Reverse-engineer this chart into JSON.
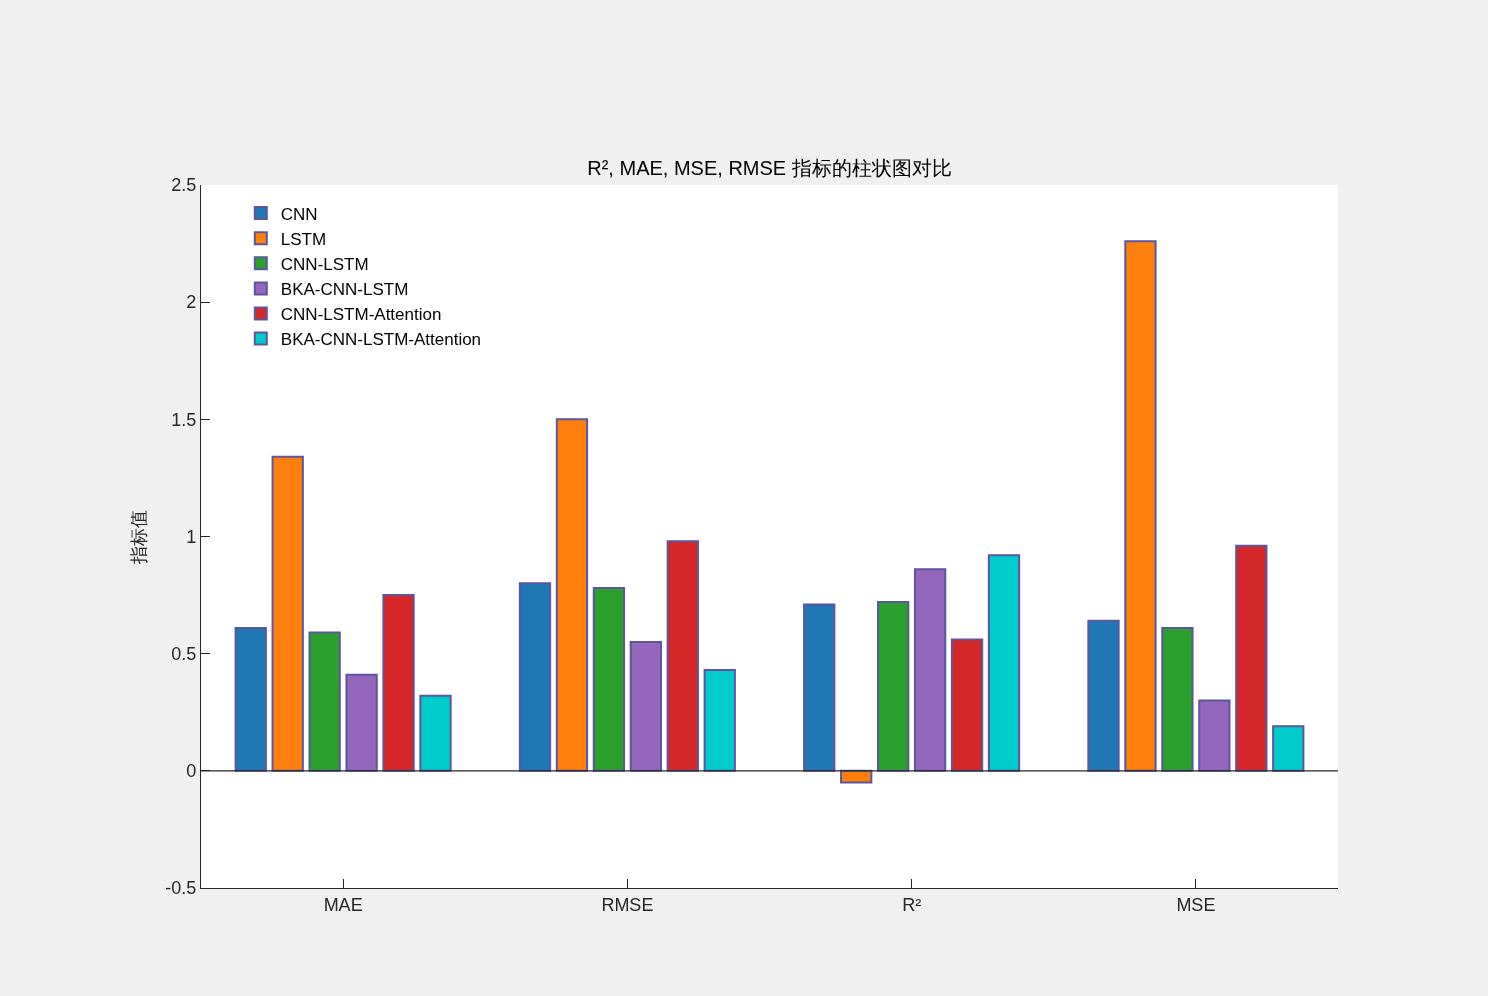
{
  "chart_data": {
    "type": "bar",
    "title": "R², MAE, MSE, RMSE 指标的柱状图对比",
    "ylabel": "指标值",
    "categories": [
      "MAE",
      "RMSE",
      "R²",
      "MSE"
    ],
    "series": [
      {
        "name": "CNN",
        "color": "#1f77b4",
        "values": [
          0.61,
          0.8,
          0.71,
          0.64
        ]
      },
      {
        "name": "LSTM",
        "color": "#ff7f0e",
        "values": [
          1.34,
          1.5,
          -0.05,
          2.26
        ]
      },
      {
        "name": "CNN-LSTM",
        "color": "#2ca02c",
        "values": [
          0.59,
          0.78,
          0.72,
          0.61
        ]
      },
      {
        "name": "BKA-CNN-LSTM",
        "color": "#9467bd",
        "values": [
          0.41,
          0.55,
          0.86,
          0.3
        ]
      },
      {
        "name": "CNN-LSTM-Attention",
        "color": "#d62728",
        "values": [
          0.75,
          0.98,
          0.56,
          0.96
        ]
      },
      {
        "name": "BKA-CNN-LSTM-Attention",
        "color": "#00cccc",
        "values": [
          0.32,
          0.43,
          0.92,
          0.19
        ]
      }
    ],
    "ylim": [
      -0.5,
      2.5
    ],
    "yticks": [
      -0.5,
      0,
      0.5,
      1,
      1.5,
      2,
      2.5
    ],
    "ref_lines": [
      {
        "axis": "y",
        "value": 0,
        "color": "#262626"
      }
    ],
    "legend": "top left"
  }
}
